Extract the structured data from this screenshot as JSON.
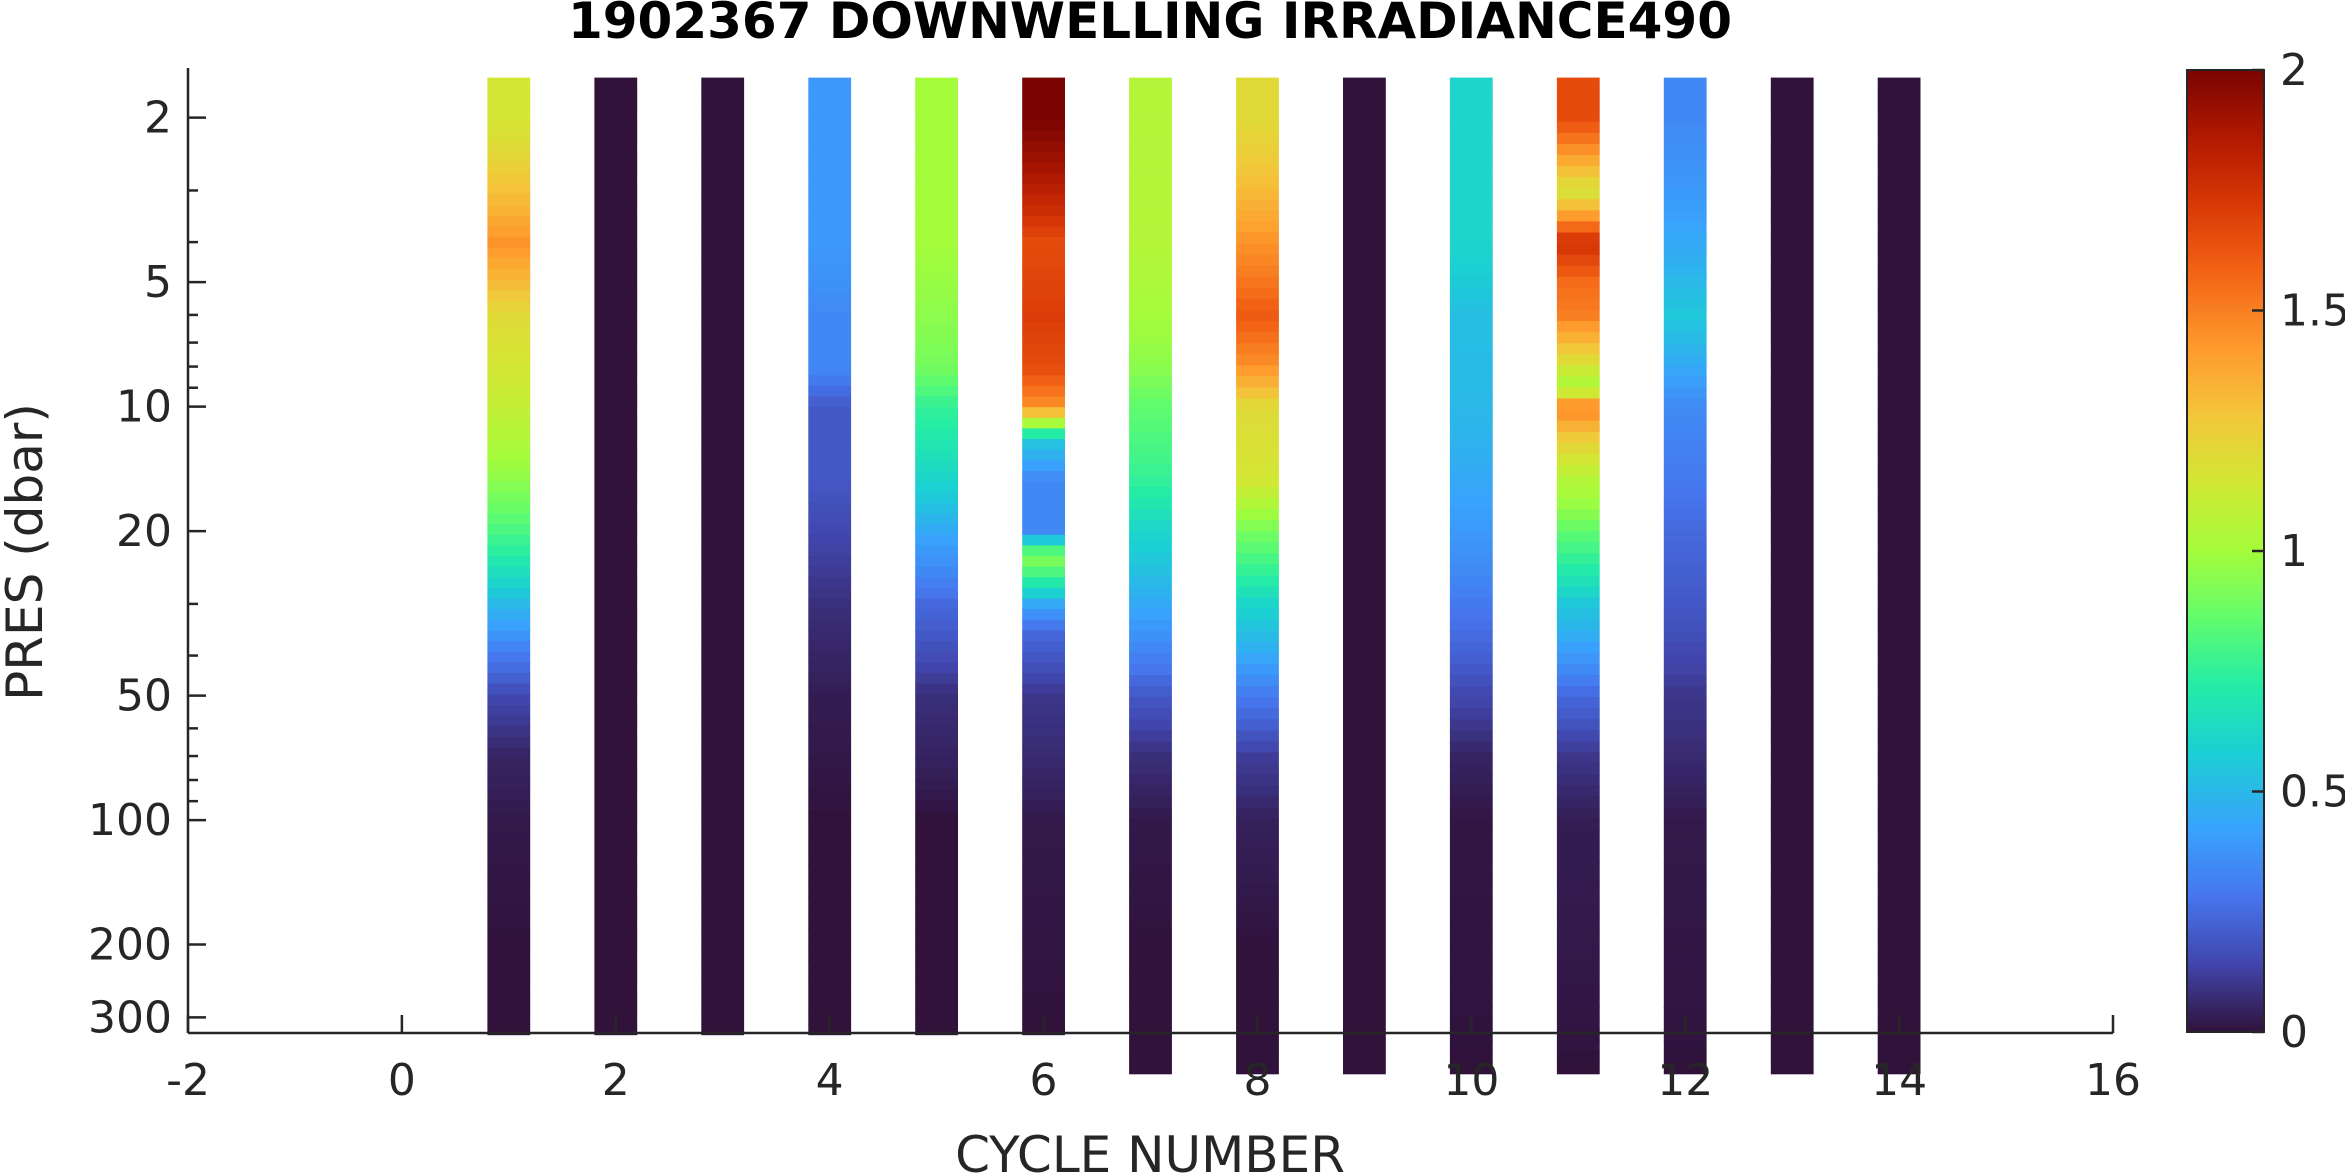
{
  "chart_data": {
    "type": "heatmap",
    "title": "1902367  DOWNWELLING IRRADIANCE490",
    "xlabel": "CYCLE NUMBER",
    "ylabel": "PRES (dbar)",
    "xlim": [
      -2,
      16
    ],
    "x_ticks": [
      "-2",
      "0",
      "2",
      "4",
      "6",
      "8",
      "10",
      "12",
      "14",
      "16"
    ],
    "ylim": [
      1.5,
      370
    ],
    "y_scale": "log",
    "y_reversed": true,
    "y_ticks": [
      {
        "value": 2,
        "label": "2"
      },
      {
        "value": 5,
        "label": "5"
      },
      {
        "value": 10,
        "label": "10"
      },
      {
        "value": 20,
        "label": "20"
      },
      {
        "value": 50,
        "label": "50"
      },
      {
        "value": 100,
        "label": "100"
      },
      {
        "value": 200,
        "label": "200"
      },
      {
        "value": 300,
        "label": "300"
      }
    ],
    "colorbar": {
      "range": [
        0,
        2
      ],
      "ticks": [
        "0",
        "0.5",
        "1",
        "1.5",
        "2"
      ],
      "colormap": "turbo"
    },
    "profiles": [
      {
        "cycle": 1,
        "points": [
          [
            2,
            1.15
          ],
          [
            4,
            1.45
          ],
          [
            6,
            1.2
          ],
          [
            8,
            1.15
          ],
          [
            10,
            1.1
          ],
          [
            15,
            0.95
          ],
          [
            20,
            0.8
          ],
          [
            25,
            0.65
          ],
          [
            30,
            0.5
          ],
          [
            40,
            0.3
          ],
          [
            50,
            0.15
          ],
          [
            70,
            0.05
          ],
          [
            100,
            0.02
          ],
          [
            200,
            0.0
          ],
          [
            300,
            0.0
          ]
        ],
        "max_pres": 330
      },
      {
        "cycle": 2,
        "points": [
          [
            2,
            0.0
          ],
          [
            4,
            0.0
          ],
          [
            6,
            0.0
          ],
          [
            8,
            0.0
          ],
          [
            10,
            0.0
          ],
          [
            20,
            0.0
          ],
          [
            50,
            0.0
          ],
          [
            100,
            0.0
          ],
          [
            300,
            0.0
          ]
        ],
        "max_pres": 330
      },
      {
        "cycle": 3,
        "points": [
          [
            2,
            0.0
          ],
          [
            4,
            0.0
          ],
          [
            6,
            0.0
          ],
          [
            8,
            0.0
          ],
          [
            10,
            0.0
          ],
          [
            20,
            0.0
          ],
          [
            50,
            0.0
          ],
          [
            100,
            0.0
          ],
          [
            300,
            0.0
          ]
        ],
        "max_pres": 330
      },
      {
        "cycle": 4,
        "points": [
          [
            2,
            0.4
          ],
          [
            4,
            0.4
          ],
          [
            6,
            0.35
          ],
          [
            8,
            0.35
          ],
          [
            10,
            0.2
          ],
          [
            15,
            0.2
          ],
          [
            20,
            0.15
          ],
          [
            30,
            0.08
          ],
          [
            50,
            0.03
          ],
          [
            100,
            0.0
          ],
          [
            300,
            0.0
          ]
        ],
        "max_pres": 330
      },
      {
        "cycle": 5,
        "points": [
          [
            2,
            1.0
          ],
          [
            4,
            1.0
          ],
          [
            6,
            0.95
          ],
          [
            8,
            0.9
          ],
          [
            10,
            0.75
          ],
          [
            15,
            0.6
          ],
          [
            20,
            0.45
          ],
          [
            25,
            0.35
          ],
          [
            30,
            0.25
          ],
          [
            50,
            0.08
          ],
          [
            100,
            0.0
          ],
          [
            300,
            0.0
          ]
        ],
        "max_pres": 330
      },
      {
        "cycle": 6,
        "points": [
          [
            2,
            2.0
          ],
          [
            4,
            1.65
          ],
          [
            6,
            1.7
          ],
          [
            8,
            1.65
          ],
          [
            10,
            1.45
          ],
          [
            12,
            0.55
          ],
          [
            15,
            0.35
          ],
          [
            20,
            0.35
          ],
          [
            23,
            0.95
          ],
          [
            26,
            0.75
          ],
          [
            30,
            0.45
          ],
          [
            35,
            0.25
          ],
          [
            50,
            0.1
          ],
          [
            100,
            0.02
          ],
          [
            300,
            0.0
          ]
        ],
        "max_pres": 330
      },
      {
        "cycle": 7,
        "points": [
          [
            2,
            1.05
          ],
          [
            4,
            1.05
          ],
          [
            6,
            1.0
          ],
          [
            8,
            0.95
          ],
          [
            10,
            0.85
          ],
          [
            15,
            0.75
          ],
          [
            20,
            0.6
          ],
          [
            30,
            0.45
          ],
          [
            50,
            0.2
          ],
          [
            70,
            0.08
          ],
          [
            100,
            0.02
          ],
          [
            200,
            0.0
          ],
          [
            400,
            0.0
          ]
        ],
        "max_pres": 410
      },
      {
        "cycle": 8,
        "points": [
          [
            2,
            1.2
          ],
          [
            4,
            1.45
          ],
          [
            6,
            1.6
          ],
          [
            8,
            1.45
          ],
          [
            10,
            1.2
          ],
          [
            15,
            1.15
          ],
          [
            20,
            0.9
          ],
          [
            25,
            0.75
          ],
          [
            30,
            0.6
          ],
          [
            40,
            0.45
          ],
          [
            50,
            0.3
          ],
          [
            70,
            0.12
          ],
          [
            100,
            0.04
          ],
          [
            200,
            0.0
          ],
          [
            400,
            0.0
          ]
        ],
        "max_pres": 410
      },
      {
        "cycle": 9,
        "points": [
          [
            2,
            0.0
          ],
          [
            4,
            0.0
          ],
          [
            6,
            0.0
          ],
          [
            8,
            0.0
          ],
          [
            10,
            0.0
          ],
          [
            20,
            0.0
          ],
          [
            50,
            0.0
          ],
          [
            100,
            0.0
          ],
          [
            400,
            0.0
          ]
        ],
        "max_pres": 410
      },
      {
        "cycle": 10,
        "points": [
          [
            2,
            0.6
          ],
          [
            3,
            0.6
          ],
          [
            4,
            0.6
          ],
          [
            6,
            0.52
          ],
          [
            10,
            0.5
          ],
          [
            15,
            0.45
          ],
          [
            20,
            0.4
          ],
          [
            30,
            0.3
          ],
          [
            50,
            0.15
          ],
          [
            70,
            0.05
          ],
          [
            100,
            0.01
          ],
          [
            400,
            0.0
          ]
        ],
        "max_pres": 410
      },
      {
        "cycle": 11,
        "points": [
          [
            2,
            1.65
          ],
          [
            3,
            1.15
          ],
          [
            4,
            1.75
          ],
          [
            5,
            1.55
          ],
          [
            6,
            1.5
          ],
          [
            8,
            1.15
          ],
          [
            9,
            1.0
          ],
          [
            10,
            1.5
          ],
          [
            12,
            1.25
          ],
          [
            15,
            1.05
          ],
          [
            18,
            0.95
          ],
          [
            20,
            0.85
          ],
          [
            25,
            0.7
          ],
          [
            30,
            0.55
          ],
          [
            40,
            0.4
          ],
          [
            50,
            0.25
          ],
          [
            70,
            0.1
          ],
          [
            100,
            0.03
          ],
          [
            400,
            0.0
          ]
        ],
        "max_pres": 410
      },
      {
        "cycle": 12,
        "points": [
          [
            2,
            0.35
          ],
          [
            3,
            0.4
          ],
          [
            4,
            0.45
          ],
          [
            6,
            0.55
          ],
          [
            8,
            0.45
          ],
          [
            10,
            0.35
          ],
          [
            15,
            0.3
          ],
          [
            20,
            0.25
          ],
          [
            30,
            0.2
          ],
          [
            50,
            0.1
          ],
          [
            100,
            0.02
          ],
          [
            400,
            0.0
          ]
        ],
        "max_pres": 410
      },
      {
        "cycle": 13,
        "points": [
          [
            2,
            0.0
          ],
          [
            3,
            0.0
          ],
          [
            5,
            0.0
          ],
          [
            10,
            0.0
          ],
          [
            50,
            0.0
          ],
          [
            100,
            0.0
          ],
          [
            400,
            0.0
          ]
        ],
        "max_pres": 410
      },
      {
        "cycle": 14,
        "points": [
          [
            2,
            0.0
          ],
          [
            3,
            0.0
          ],
          [
            5,
            0.0
          ],
          [
            10,
            0.0
          ],
          [
            50,
            0.0
          ],
          [
            100,
            0.0
          ],
          [
            400,
            0.0
          ]
        ],
        "max_pres": 410
      }
    ]
  }
}
